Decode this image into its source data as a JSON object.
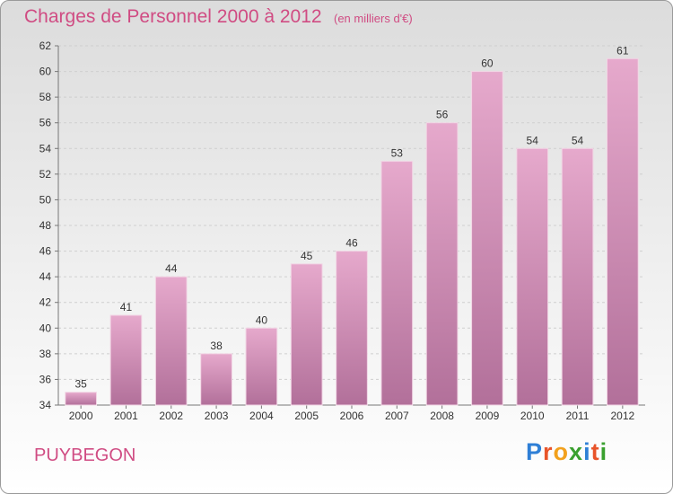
{
  "header": {
    "title": "Charges de Personnel 2000 à 2012",
    "subtitle": "(en milliers d'€)"
  },
  "footer": {
    "town": "PUYBEGON",
    "logo_letters": [
      "P",
      "r",
      "o",
      "x",
      "i",
      "t",
      "i"
    ],
    "logo_colors": [
      "#2e7fd6",
      "#e8542a",
      "#f2a11d",
      "#3aa02f",
      "#2e7fd6",
      "#e8542a",
      "#3aa02f"
    ]
  },
  "chart_data": {
    "type": "bar",
    "categories": [
      "2000",
      "2001",
      "2002",
      "2003",
      "2004",
      "2005",
      "2006",
      "2007",
      "2008",
      "2009",
      "2010",
      "2011",
      "2012"
    ],
    "values": [
      35,
      41,
      44,
      38,
      40,
      45,
      46,
      53,
      56,
      60,
      54,
      54,
      61
    ],
    "data_labels": [
      "35",
      "41",
      "44",
      "38",
      "40",
      "45",
      "46",
      "53",
      "56",
      "60",
      "54",
      "54",
      "61"
    ],
    "ylim": [
      34,
      62
    ],
    "yticks": [
      34,
      36,
      38,
      40,
      42,
      44,
      46,
      48,
      50,
      52,
      54,
      56,
      58,
      60,
      62
    ],
    "grid": true,
    "bar_color_top": "#e6a9cc",
    "bar_color_bottom": "#b2709a"
  }
}
